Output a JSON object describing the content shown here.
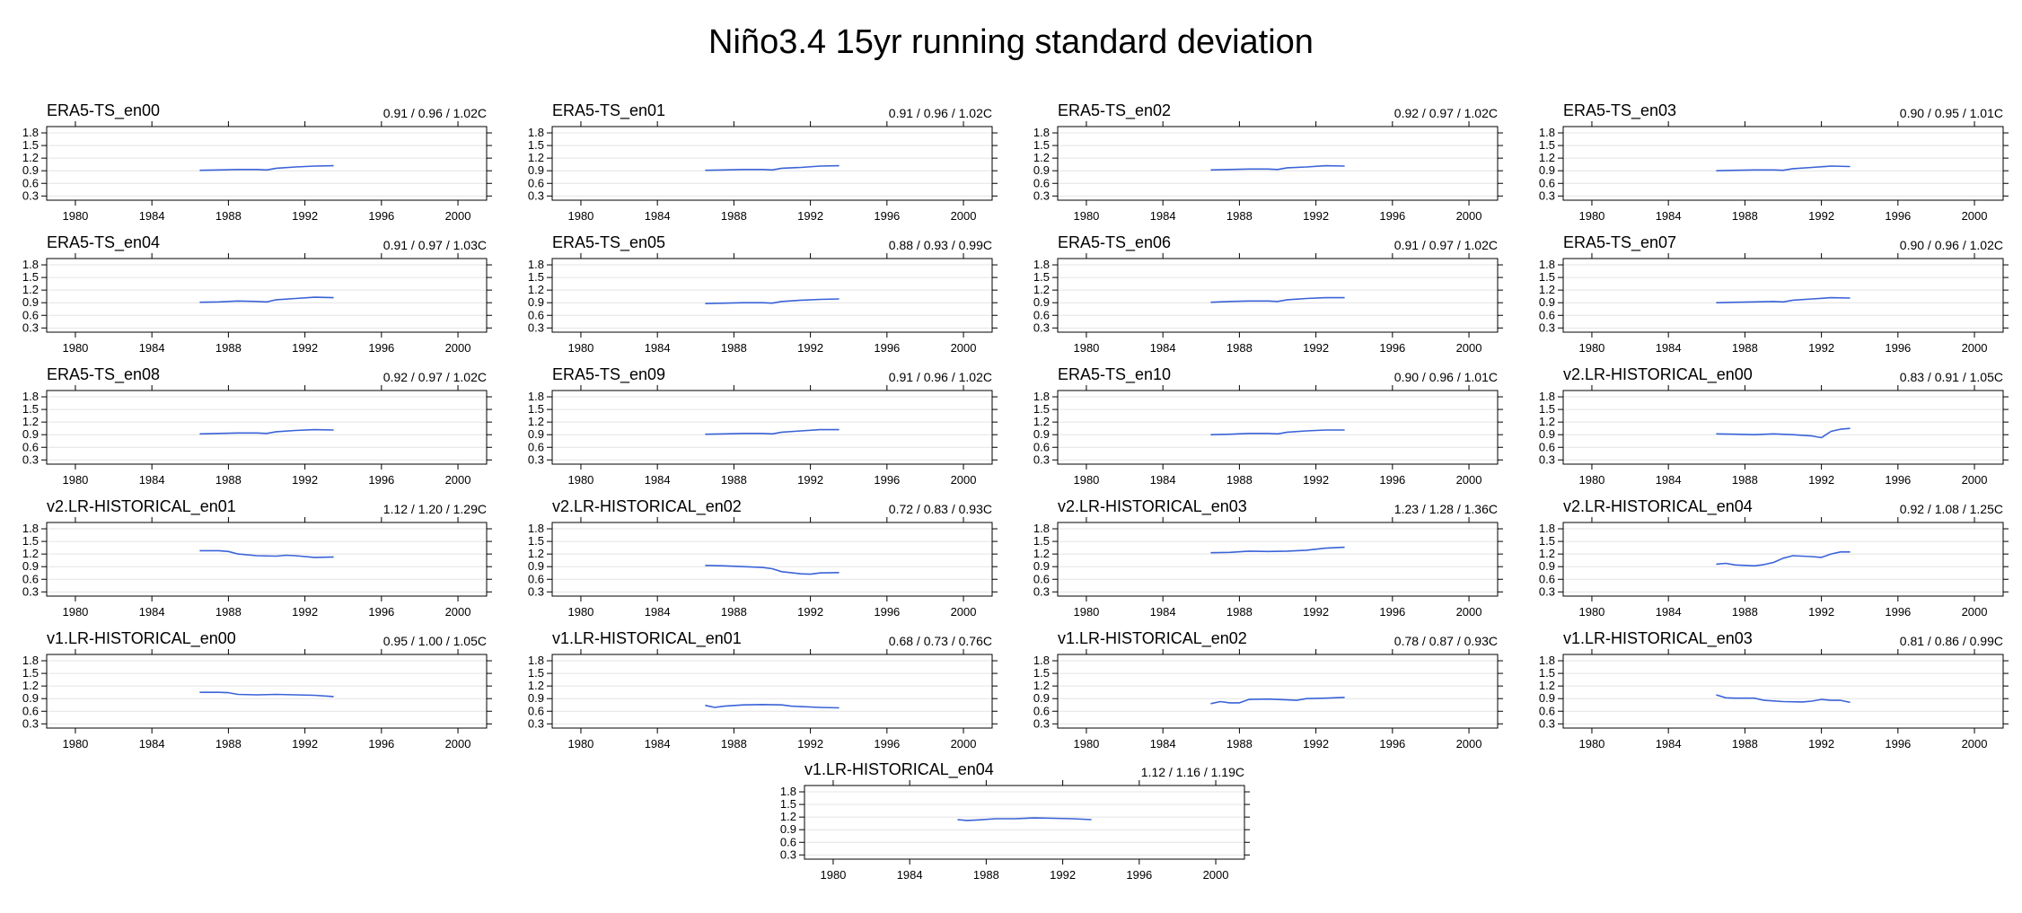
{
  "title": "Niño3.4 15yr running standard deviation",
  "shared_axes": {
    "x_ticks": [
      1980,
      1984,
      1988,
      1992,
      1996,
      2000
    ],
    "y_ticks": [
      0.3,
      0.6,
      0.9,
      1.2,
      1.5,
      1.8
    ],
    "xlim": [
      1978.5,
      2001.5
    ],
    "ylim": [
      0.2,
      1.95
    ],
    "grid": true,
    "line_color": "#3a63d8"
  },
  "chart_data": [
    {
      "type": "line",
      "title": "ERA5-TS_en00",
      "annotation": "0.91 / 0.96 / 1.02C",
      "x": [
        1986.5,
        1987.5,
        1988.5,
        1989.5,
        1990,
        1990.5,
        1991.5,
        1992.5,
        1993.5
      ],
      "y": [
        0.91,
        0.92,
        0.93,
        0.93,
        0.92,
        0.96,
        0.99,
        1.01,
        1.02
      ]
    },
    {
      "type": "line",
      "title": "ERA5-TS_en01",
      "annotation": "0.91 / 0.96 / 1.02C",
      "x": [
        1986.5,
        1987.5,
        1988.5,
        1989.5,
        1990,
        1990.5,
        1991.5,
        1992.5,
        1993.5
      ],
      "y": [
        0.91,
        0.92,
        0.93,
        0.93,
        0.92,
        0.96,
        0.98,
        1.01,
        1.02
      ]
    },
    {
      "type": "line",
      "title": "ERA5-TS_en02",
      "annotation": "0.92 / 0.97 / 1.02C",
      "x": [
        1986.5,
        1987.5,
        1988.5,
        1989.5,
        1990,
        1990.5,
        1991.5,
        1992.5,
        1993.5
      ],
      "y": [
        0.92,
        0.93,
        0.94,
        0.94,
        0.93,
        0.97,
        0.99,
        1.02,
        1.01
      ]
    },
    {
      "type": "line",
      "title": "ERA5-TS_en03",
      "annotation": "0.90 / 0.95 / 1.01C",
      "x": [
        1986.5,
        1987.5,
        1988.5,
        1989.5,
        1990,
        1990.5,
        1991.5,
        1992.5,
        1993.5
      ],
      "y": [
        0.9,
        0.91,
        0.92,
        0.92,
        0.91,
        0.95,
        0.98,
        1.01,
        1.0
      ]
    },
    {
      "type": "line",
      "title": "ERA5-TS_en04",
      "annotation": "0.91 / 0.97 / 1.03C",
      "x": [
        1986.5,
        1987.5,
        1988.5,
        1989.5,
        1990,
        1990.5,
        1991.5,
        1992.5,
        1993.5
      ],
      "y": [
        0.91,
        0.92,
        0.94,
        0.93,
        0.92,
        0.97,
        1.0,
        1.03,
        1.02
      ]
    },
    {
      "type": "line",
      "title": "ERA5-TS_en05",
      "annotation": "0.88 / 0.93 / 0.99C",
      "x": [
        1986.5,
        1987.5,
        1988.5,
        1989.5,
        1990,
        1990.5,
        1991.5,
        1992.5,
        1993.5
      ],
      "y": [
        0.88,
        0.89,
        0.9,
        0.9,
        0.89,
        0.93,
        0.96,
        0.98,
        0.99
      ]
    },
    {
      "type": "line",
      "title": "ERA5-TS_en06",
      "annotation": "0.91 / 0.97 / 1.02C",
      "x": [
        1986.5,
        1987.5,
        1988.5,
        1989.5,
        1990,
        1990.5,
        1991.5,
        1992.5,
        1993.5
      ],
      "y": [
        0.91,
        0.93,
        0.94,
        0.94,
        0.93,
        0.97,
        1.0,
        1.02,
        1.02
      ]
    },
    {
      "type": "line",
      "title": "ERA5-TS_en07",
      "annotation": "0.90 / 0.96 / 1.02C",
      "x": [
        1986.5,
        1987.5,
        1988.5,
        1989.5,
        1990,
        1990.5,
        1991.5,
        1992.5,
        1993.5
      ],
      "y": [
        0.9,
        0.91,
        0.92,
        0.93,
        0.92,
        0.96,
        0.99,
        1.02,
        1.01
      ]
    },
    {
      "type": "line",
      "title": "ERA5-TS_en08",
      "annotation": "0.92 / 0.97 / 1.02C",
      "x": [
        1986.5,
        1987.5,
        1988.5,
        1989.5,
        1990,
        1990.5,
        1991.5,
        1992.5,
        1993.5
      ],
      "y": [
        0.92,
        0.93,
        0.94,
        0.94,
        0.93,
        0.97,
        1.0,
        1.02,
        1.01
      ]
    },
    {
      "type": "line",
      "title": "ERA5-TS_en09",
      "annotation": "0.91 / 0.96 / 1.02C",
      "x": [
        1986.5,
        1987.5,
        1988.5,
        1989.5,
        1990,
        1990.5,
        1991.5,
        1992.5,
        1993.5
      ],
      "y": [
        0.91,
        0.92,
        0.93,
        0.93,
        0.92,
        0.96,
        0.99,
        1.02,
        1.02
      ]
    },
    {
      "type": "line",
      "title": "ERA5-TS_en10",
      "annotation": "0.90 / 0.96 / 1.01C",
      "x": [
        1986.5,
        1987.5,
        1988.5,
        1989.5,
        1990,
        1990.5,
        1991.5,
        1992.5,
        1993.5
      ],
      "y": [
        0.9,
        0.91,
        0.93,
        0.93,
        0.92,
        0.96,
        0.99,
        1.01,
        1.01
      ]
    },
    {
      "type": "line",
      "title": "v2.LR-HISTORICAL_en00",
      "annotation": "0.83 / 0.91 / 1.05C",
      "x": [
        1986.5,
        1987.5,
        1988.5,
        1989.5,
        1990.5,
        1991.5,
        1992,
        1992.5,
        1993,
        1993.5
      ],
      "y": [
        0.92,
        0.91,
        0.9,
        0.92,
        0.9,
        0.87,
        0.83,
        0.98,
        1.03,
        1.05
      ]
    },
    {
      "type": "line",
      "title": "v2.LR-HISTORICAL_en01",
      "annotation": "1.12 / 1.20 / 1.29C",
      "x": [
        1986.5,
        1987.5,
        1988,
        1988.5,
        1989.5,
        1990.5,
        1991,
        1991.5,
        1992.5,
        1993.5
      ],
      "y": [
        1.28,
        1.28,
        1.26,
        1.2,
        1.16,
        1.15,
        1.17,
        1.16,
        1.12,
        1.13
      ]
    },
    {
      "type": "line",
      "title": "v2.LR-HISTORICAL_en02",
      "annotation": "0.72 / 0.83 / 0.93C",
      "x": [
        1986.5,
        1987.5,
        1988.5,
        1989.5,
        1990,
        1990.5,
        1991.5,
        1992,
        1992.5,
        1993.5
      ],
      "y": [
        0.93,
        0.92,
        0.9,
        0.88,
        0.85,
        0.78,
        0.73,
        0.72,
        0.75,
        0.76
      ]
    },
    {
      "type": "line",
      "title": "v2.LR-HISTORICAL_en03",
      "annotation": "1.23 / 1.28 / 1.36C",
      "x": [
        1986.5,
        1987.5,
        1988.5,
        1989.5,
        1990.5,
        1991.5,
        1992.5,
        1993.5
      ],
      "y": [
        1.23,
        1.24,
        1.27,
        1.26,
        1.27,
        1.29,
        1.34,
        1.36
      ]
    },
    {
      "type": "line",
      "title": "v2.LR-HISTORICAL_en04",
      "annotation": "0.92 / 1.08 / 1.25C",
      "x": [
        1986.5,
        1987,
        1987.5,
        1988.5,
        1989,
        1989.5,
        1990,
        1990.5,
        1991.5,
        1992,
        1992.5,
        1993,
        1993.5
      ],
      "y": [
        0.96,
        0.98,
        0.94,
        0.92,
        0.95,
        1.0,
        1.1,
        1.16,
        1.14,
        1.12,
        1.2,
        1.25,
        1.25
      ]
    },
    {
      "type": "line",
      "title": "v1.LR-HISTORICAL_en00",
      "annotation": "0.95 / 1.00 / 1.05C",
      "x": [
        1986.5,
        1987.5,
        1988,
        1988.5,
        1989.5,
        1990.5,
        1991.5,
        1992.5,
        1993.5
      ],
      "y": [
        1.05,
        1.05,
        1.04,
        1.0,
        0.99,
        1.0,
        0.99,
        0.98,
        0.95
      ]
    },
    {
      "type": "line",
      "title": "v1.LR-HISTORICAL_en01",
      "annotation": "0.68 / 0.73 / 0.76C",
      "x": [
        1986.5,
        1987,
        1987.5,
        1988.5,
        1989.5,
        1990.5,
        1991,
        1991.5,
        1992.5,
        1993.5
      ],
      "y": [
        0.74,
        0.69,
        0.72,
        0.75,
        0.76,
        0.75,
        0.72,
        0.71,
        0.69,
        0.68
      ]
    },
    {
      "type": "line",
      "title": "v1.LR-HISTORICAL_en02",
      "annotation": "0.78 / 0.87 / 0.93C",
      "x": [
        1986.5,
        1987,
        1987.5,
        1988,
        1988.5,
        1989.5,
        1990.5,
        1991,
        1991.5,
        1992.5,
        1993.5
      ],
      "y": [
        0.78,
        0.83,
        0.8,
        0.8,
        0.88,
        0.89,
        0.87,
        0.86,
        0.9,
        0.91,
        0.93
      ]
    },
    {
      "type": "line",
      "title": "v1.LR-HISTORICAL_en03",
      "annotation": "0.81 / 0.86 / 0.99C",
      "x": [
        1986.5,
        1987,
        1987.5,
        1988.5,
        1989,
        1990,
        1991,
        1991.5,
        1992,
        1992.5,
        1993,
        1993.5
      ],
      "y": [
        0.99,
        0.92,
        0.91,
        0.91,
        0.86,
        0.83,
        0.82,
        0.84,
        0.88,
        0.86,
        0.86,
        0.81
      ]
    },
    {
      "type": "line",
      "title": "v1.LR-HISTORICAL_en04",
      "annotation": "1.12 / 1.16 / 1.19C",
      "x": [
        1986.5,
        1987,
        1987.5,
        1988.5,
        1989.5,
        1990.5,
        1991.5,
        1992.5,
        1993.5
      ],
      "y": [
        1.14,
        1.12,
        1.13,
        1.16,
        1.16,
        1.18,
        1.17,
        1.16,
        1.14
      ]
    }
  ]
}
